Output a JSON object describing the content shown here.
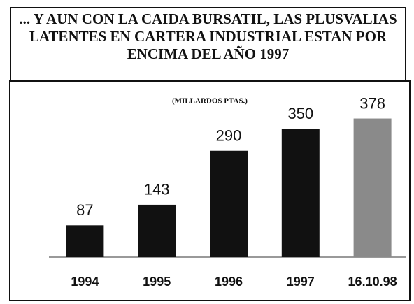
{
  "chart_data": {
    "type": "bar",
    "title": "... Y AUN CON LA CAIDA BURSATIL, LAS PLUSVALIAS LATENTES EN CARTERA INDUSTRIAL ESTAN POR ENCIMA DEL AÑO 1997",
    "subtitle": "(MILLARDOS PTAS.)",
    "categories": [
      "1994",
      "1995",
      "1996",
      "1997",
      "16.10.98"
    ],
    "values": [
      87,
      143,
      290,
      350,
      378
    ],
    "colors": [
      "#111111",
      "#111111",
      "#111111",
      "#111111",
      "#8a8a8a"
    ],
    "ylim": [
      0,
      400
    ]
  }
}
